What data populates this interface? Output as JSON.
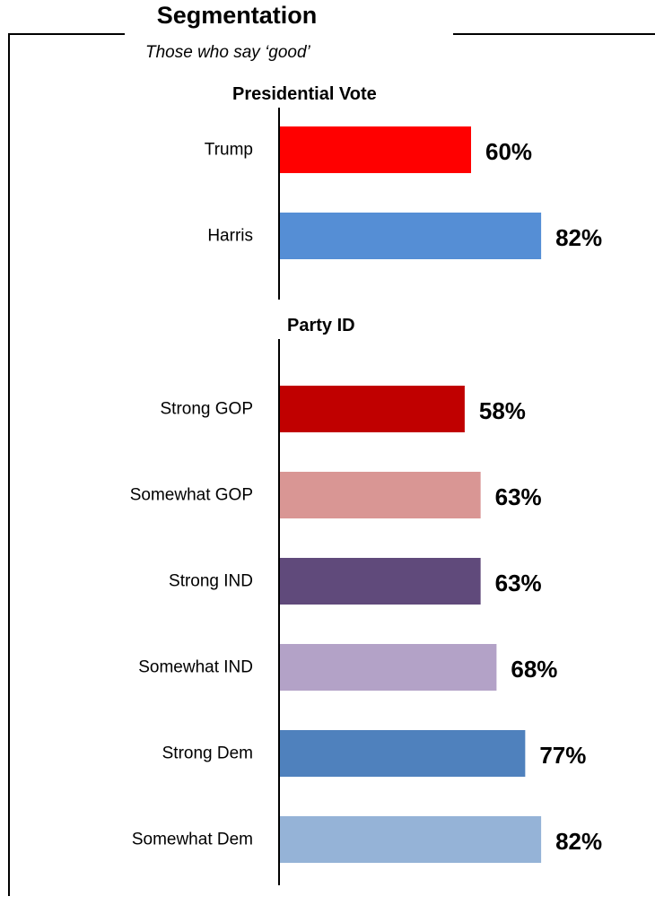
{
  "header": {
    "title": "Segmentation",
    "subtitle": "Those who say ‘good’"
  },
  "chart_data": {
    "type": "bar",
    "orientation": "horizontal",
    "value_format": "percent",
    "xlim": [
      0,
      100
    ],
    "grid": false,
    "groups": [
      {
        "title": "Presidential Vote",
        "categories": [
          "Trump",
          "Harris"
        ],
        "values": [
          60,
          82
        ],
        "colors": [
          "#FF0000",
          "#558ED5"
        ]
      },
      {
        "title": "Party ID",
        "categories": [
          "Strong GOP",
          "Somewhat GOP",
          "Strong IND",
          "Somewhat IND",
          "Strong Dem",
          "Somewhat Dem"
        ],
        "values": [
          58,
          63,
          63,
          68,
          77,
          82
        ],
        "colors": [
          "#C00000",
          "#D99694",
          "#604A7B",
          "#B3A2C7",
          "#4F81BD",
          "#95B3D7"
        ]
      }
    ]
  }
}
